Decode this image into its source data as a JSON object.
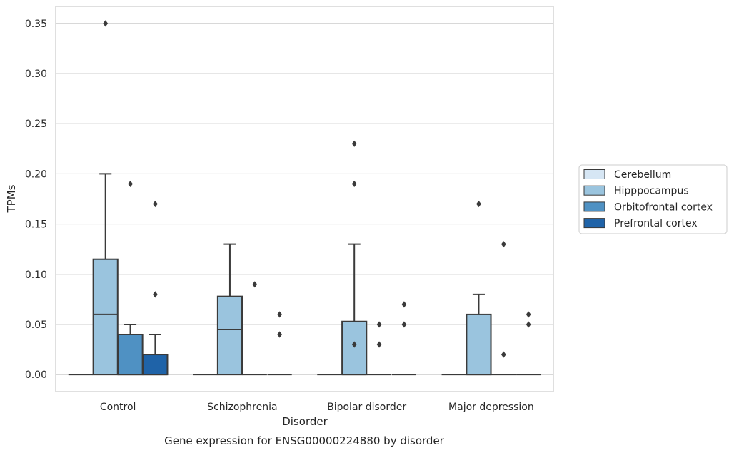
{
  "chart_data": {
    "type": "box",
    "title": "",
    "caption": "Gene expression for ENSG00000224880 by disorder",
    "xlabel": "Disorder",
    "ylabel": "TPMs",
    "ylim": [
      -0.017,
      0.367
    ],
    "yticks": [
      0.0,
      0.05,
      0.1,
      0.15,
      0.2,
      0.25,
      0.3,
      0.35
    ],
    "ytick_labels": [
      "0.00",
      "0.05",
      "0.10",
      "0.15",
      "0.20",
      "0.25",
      "0.30",
      "0.35"
    ],
    "grid": "horizontal",
    "legend_position": "right",
    "categories": [
      "Control",
      "Schizophrenia",
      "Bipolar disorder",
      "Major depression"
    ],
    "series": [
      {
        "name": "Cerebellum",
        "color": "#d6e6f4",
        "boxes": [
          {
            "q1": 0,
            "median": 0,
            "q3": 0,
            "whisker_low": 0,
            "whisker_high": 0,
            "outliers": []
          },
          {
            "q1": 0,
            "median": 0,
            "q3": 0,
            "whisker_low": 0,
            "whisker_high": 0,
            "outliers": []
          },
          {
            "q1": 0,
            "median": 0,
            "q3": 0,
            "whisker_low": 0,
            "whisker_high": 0,
            "outliers": []
          },
          {
            "q1": 0,
            "median": 0,
            "q3": 0,
            "whisker_low": 0,
            "whisker_high": 0,
            "outliers": []
          }
        ]
      },
      {
        "name": "Hipppocampus",
        "color": "#9ac4de",
        "boxes": [
          {
            "q1": 0,
            "median": 0.06,
            "q3": 0.115,
            "whisker_low": 0,
            "whisker_high": 0.2,
            "outliers": [
              0.35
            ]
          },
          {
            "q1": 0,
            "median": 0.045,
            "q3": 0.078,
            "whisker_low": 0,
            "whisker_high": 0.13,
            "outliers": []
          },
          {
            "q1": 0,
            "median": 0,
            "q3": 0.053,
            "whisker_low": 0,
            "whisker_high": 0.13,
            "outliers": [
              0.03,
              0.19,
              0.23
            ]
          },
          {
            "q1": 0,
            "median": 0,
            "q3": 0.06,
            "whisker_low": 0,
            "whisker_high": 0.08,
            "outliers": [
              0.17
            ]
          }
        ]
      },
      {
        "name": "Orbitofrontal cortex",
        "color": "#4f91c3",
        "boxes": [
          {
            "q1": 0,
            "median": 0,
            "q3": 0.04,
            "whisker_low": 0,
            "whisker_high": 0.05,
            "outliers": [
              0.19
            ]
          },
          {
            "q1": 0,
            "median": 0,
            "q3": 0,
            "whisker_low": 0,
            "whisker_high": 0,
            "outliers": [
              0.09
            ]
          },
          {
            "q1": 0,
            "median": 0,
            "q3": 0,
            "whisker_low": 0,
            "whisker_high": 0,
            "outliers": [
              0.03,
              0.05
            ]
          },
          {
            "q1": 0,
            "median": 0,
            "q3": 0,
            "whisker_low": 0,
            "whisker_high": 0,
            "outliers": [
              0.02,
              0.13
            ]
          }
        ]
      },
      {
        "name": "Prefrontal cortex",
        "color": "#1f63a8",
        "boxes": [
          {
            "q1": 0,
            "median": 0,
            "q3": 0.02,
            "whisker_low": 0,
            "whisker_high": 0.04,
            "outliers": [
              0.08,
              0.17
            ]
          },
          {
            "q1": 0,
            "median": 0,
            "q3": 0,
            "whisker_low": 0,
            "whisker_high": 0,
            "outliers": [
              0.04,
              0.06
            ]
          },
          {
            "q1": 0,
            "median": 0,
            "q3": 0,
            "whisker_low": 0,
            "whisker_high": 0,
            "outliers": [
              0.05,
              0.07
            ]
          },
          {
            "q1": 0,
            "median": 0,
            "q3": 0,
            "whisker_low": 0,
            "whisker_high": 0,
            "outliers": [
              0.05,
              0.06
            ]
          }
        ]
      }
    ]
  }
}
